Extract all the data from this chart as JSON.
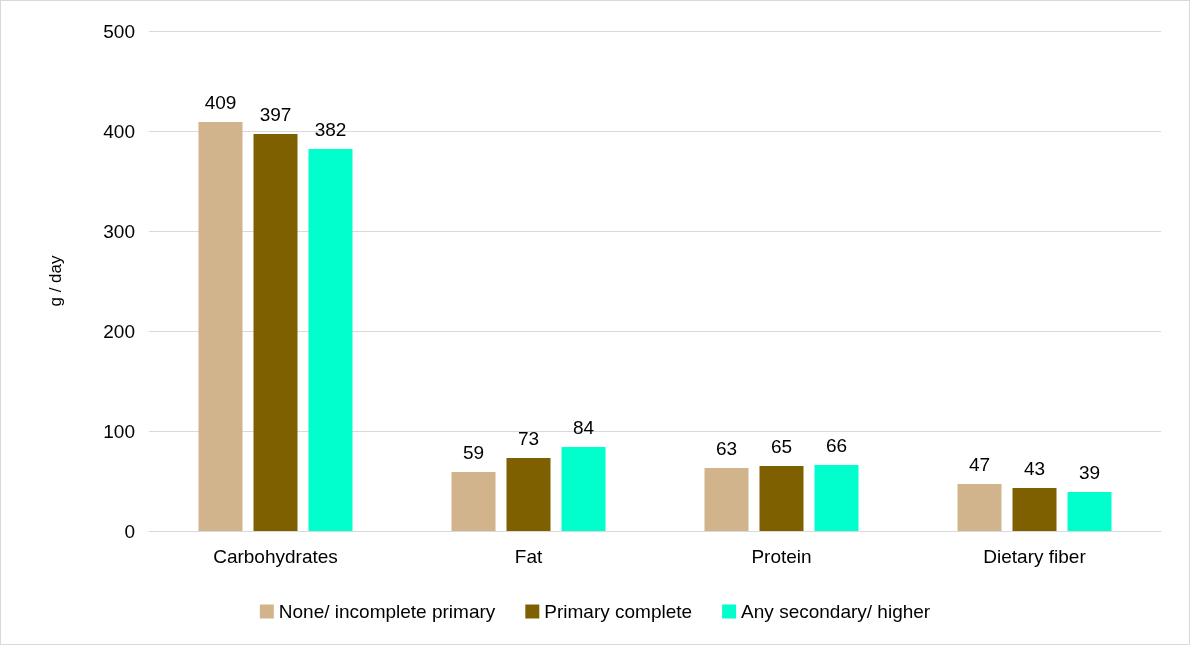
{
  "chart_data": {
    "type": "bar",
    "ylabel": "g / day",
    "categories": [
      "Carbohydrates",
      "Fat",
      "Protein",
      "Dietary fiber"
    ],
    "series": [
      {
        "name": "None/ incomplete primary",
        "color": "#d2b48c",
        "values": [
          409,
          59,
          63,
          47
        ]
      },
      {
        "name": "Primary complete",
        "color": "#7f6000",
        "values": [
          397,
          73,
          65,
          43
        ]
      },
      {
        "name": "Any secondary/ higher",
        "color": "#00ffcc",
        "values": [
          382,
          84,
          66,
          39
        ]
      }
    ],
    "ylim": [
      0,
      500
    ],
    "yticks": [
      0,
      100,
      200,
      300,
      400,
      500
    ],
    "grid": "y",
    "legend": "bottom",
    "data_labels": true
  }
}
